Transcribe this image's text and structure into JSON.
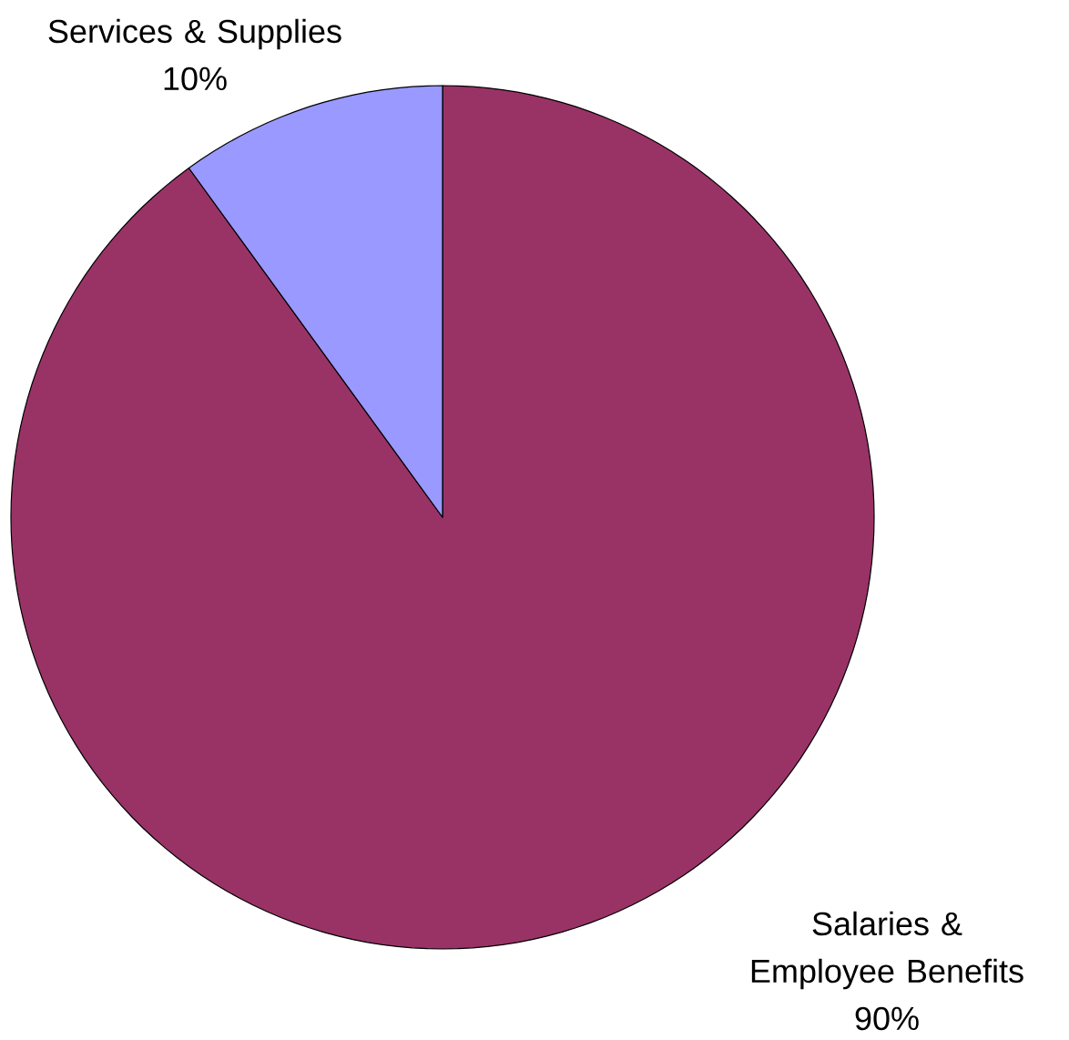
{
  "chart_data": {
    "type": "pie",
    "categories": [
      "Salaries & Employee Benefits",
      "Services & Supplies"
    ],
    "values": [
      90,
      10
    ],
    "colors": [
      "#993366",
      "#9999ff"
    ],
    "value_labels": [
      "90%",
      "10%"
    ]
  }
}
